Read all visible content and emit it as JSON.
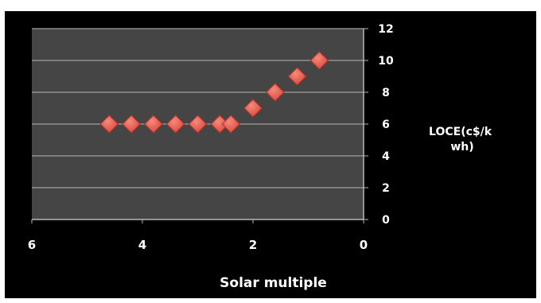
{
  "chart_data": {
    "type": "scatter",
    "xlabel": "Solar multiple",
    "ylabel_lines": [
      "LOCE(c$/k",
      "wh)"
    ],
    "x_reversed": true,
    "xlim": [
      0,
      6
    ],
    "ylim": [
      0,
      12
    ],
    "x_ticks": [
      6,
      4,
      2,
      0
    ],
    "y_ticks": [
      0,
      2,
      4,
      6,
      8,
      10,
      12
    ],
    "grid": true,
    "legend": "none",
    "series": [
      {
        "points": [
          {
            "x": 4.6,
            "y": 6
          },
          {
            "x": 4.2,
            "y": 6
          },
          {
            "x": 3.8,
            "y": 6
          },
          {
            "x": 3.4,
            "y": 6
          },
          {
            "x": 3.0,
            "y": 6
          },
          {
            "x": 2.6,
            "y": 6
          },
          {
            "x": 2.4,
            "y": 6
          },
          {
            "x": 2.0,
            "y": 7
          },
          {
            "x": 1.6,
            "y": 8
          },
          {
            "x": 1.2,
            "y": 9
          },
          {
            "x": 0.8,
            "y": 10
          }
        ]
      }
    ]
  },
  "colors": {
    "background": "#000000",
    "plot_area": "#454545",
    "gridline": "#b8b8b8",
    "marker": "#d9473c",
    "marker_highlight": "#f58a7a",
    "text": "#ffffff"
  }
}
